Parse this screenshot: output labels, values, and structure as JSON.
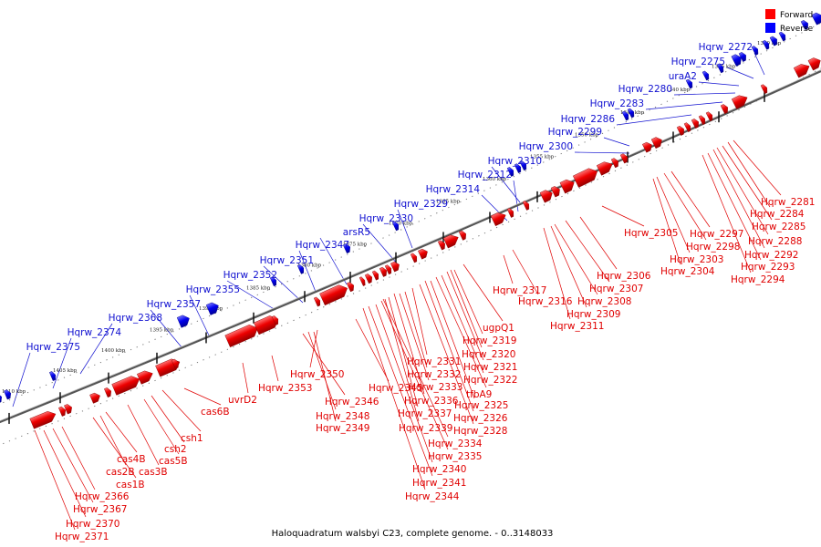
{
  "legend": {
    "forward": {
      "label": "Forward",
      "color": "#ff0000"
    },
    "reverse": {
      "label": "Reverse",
      "color": "#0000ff"
    }
  },
  "caption": "Haloquadratum walsbyi C23, complete genome. - 0..3148033",
  "scale_ticks": [
    "1410 kbp",
    "1405 kbp",
    "1400 kbp",
    "1395 kbp",
    "1390 kbp",
    "1385 kbp",
    "1380 kbp",
    "1375 kbp",
    "1370 kbp",
    "1365 kbp",
    "1360 kbp",
    "1355 kbp",
    "1350 kbp",
    "1345 kbp",
    "1340 kbp",
    "1335 kbp",
    "1330 kbp"
  ],
  "reverse_labels": [
    "Hqrw_2375",
    "Hqrw_2374",
    "Hqrw_2368",
    "Hqrw_2357",
    "Hqrw_2355",
    "Hqrw_2352",
    "Hqrw_2351",
    "Hqrw_2347",
    "arsR5",
    "Hqrw_2330",
    "Hqrw_2329",
    "Hqrw_2314",
    "Hqrw_2312",
    "Hqrw_2310",
    "Hqrw_2300",
    "Hqrw_2299",
    "Hqrw_2286",
    "Hqrw_2283",
    "Hqrw_2280",
    "uraA2",
    "Hqrw_2275",
    "Hqrw_2272"
  ],
  "forward_labels": [
    "Hqrw_2371",
    "Hqrw_2370",
    "Hqrw_2367",
    "Hqrw_2366",
    "cas1B",
    "cas2B",
    "cas4B",
    "cas3B",
    "cas5B",
    "csh2",
    "csh1",
    "cas6B",
    "uvrD2",
    "Hqrw_2353",
    "Hqrw_2350",
    "Hqrw_2346",
    "Hqrw_2348",
    "Hqrw_2349",
    "Hqrw_2345",
    "Hqrw_2344",
    "Hqrw_2341",
    "Hqrw_2340",
    "Hqrw_2335",
    "Hqrw_2334",
    "Hqrw_2339",
    "Hqrw_2337",
    "Hqrw_2336",
    "Hqrw_2333",
    "Hqrw_2332",
    "Hqrw_2331",
    "Hqrw_2328",
    "Hqrw_2326",
    "Hqrw_2325",
    "tfbA9",
    "Hqrw_2322",
    "Hqrw_2321",
    "Hqrw_2320",
    "Hqrw_2319",
    "ugpQ1",
    "Hqrw_2317",
    "Hqrw_2316",
    "Hqrw_2311",
    "Hqrw_2309",
    "Hqrw_2308",
    "Hqrw_2307",
    "Hqrw_2306",
    "Hqrw_2305",
    "Hqrw_2304",
    "Hqrw_2303",
    "Hqrw_2298",
    "Hqrw_2297",
    "Hqrw_2294",
    "Hqrw_2293",
    "Hqrw_2292",
    "Hqrw_2288",
    "Hqrw_2285",
    "Hqrw_2284",
    "Hqrw_2281"
  ]
}
